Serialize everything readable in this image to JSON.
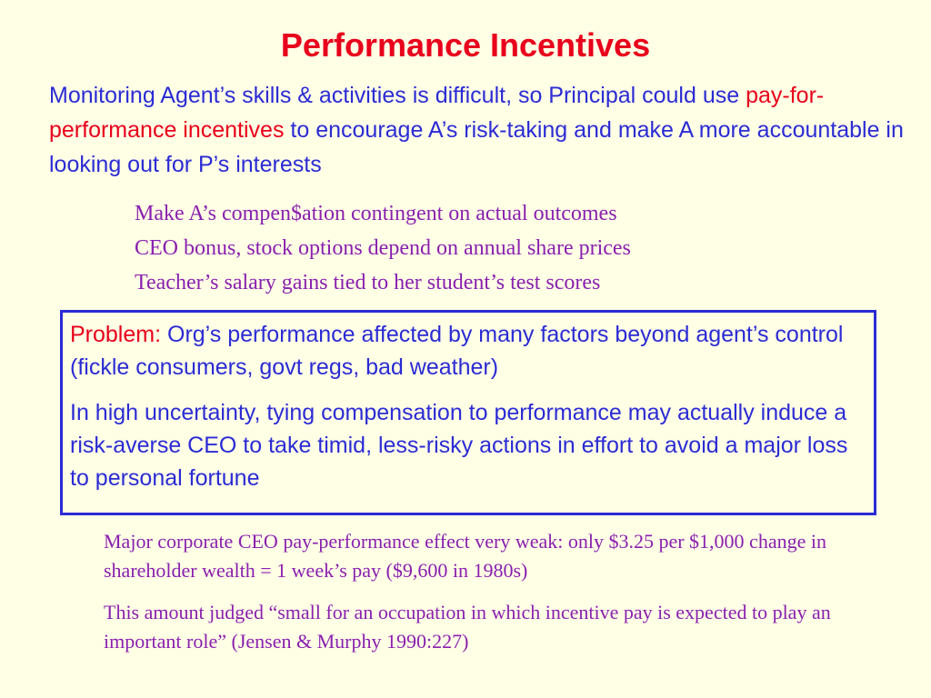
{
  "slide": {
    "title": "Performance Incentives",
    "intro": {
      "part1": "Monitoring Agent’s skills & activities is difficult, so Principal could use ",
      "highlight": "pay-for-performance incentives",
      "part2": " to encourage A’s risk-taking and make A more accountable in looking out for P’s interests"
    },
    "examples": [
      "Make A’s compen$ation contingent on actual outcomes",
      "CEO bonus, stock options depend on annual share prices",
      "Teacher’s salary gains tied to her student’s test scores"
    ],
    "problem_box": {
      "label": "Problem:",
      "text1": " Org’s performance affected by many factors beyond agent’s control (fickle consumers, govt regs, bad weather)",
      "text2": "In high uncertainty, tying compensation to performance may actually induce a risk-averse CEO to take timid, less-risky actions in effort to avoid a major loss to personal fortune"
    },
    "notes": [
      "Major corporate CEO pay-performance effect very weak:  only $3.25 per $1,000 change in shareholder wealth = 1 week’s pay ($9,600 in 1980s)",
      "This amount judged “small for an occupation in which incentive pay is expected to play an important role” (Jensen & Murphy 1990:227)"
    ],
    "colors": {
      "background": "#ffffe5",
      "title": "#e8001c",
      "body_text": "#2b2bd6",
      "serif_text": "#8a1fb0",
      "box_border": "#2b2bd6"
    }
  }
}
